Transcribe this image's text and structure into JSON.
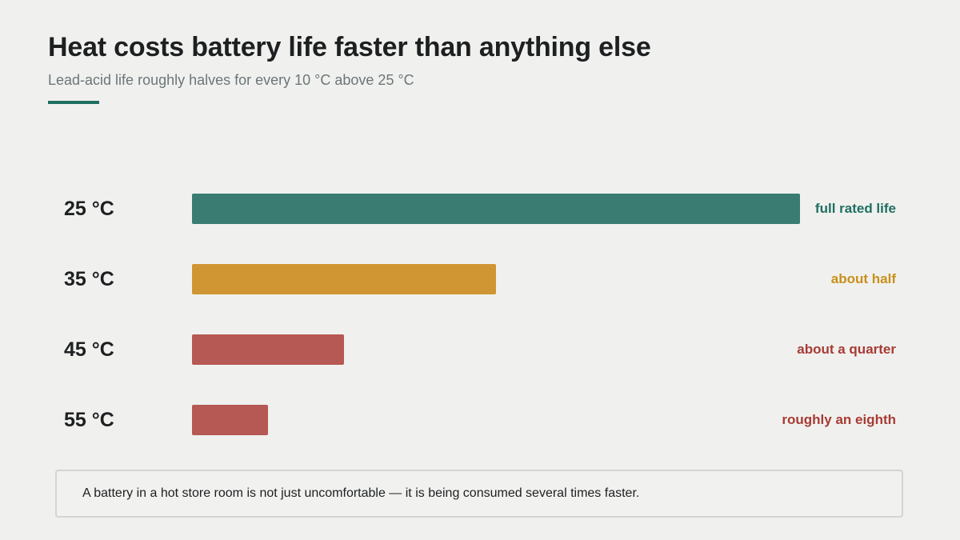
{
  "header": {
    "title": "Heat costs battery life faster than anything else",
    "subtitle": "Lead-acid life roughly halves for every 10 °C above 25 °C"
  },
  "colors": {
    "background": "#f0f1ee",
    "accent": "#1f6e62",
    "teal": "#3a7c72",
    "amber": "#d09634",
    "red": "#b65853",
    "teal_text": "#1f6e62",
    "amber_text": "#c98f1a",
    "red_text": "#a83a34"
  },
  "chart_data": {
    "type": "bar",
    "orientation": "horizontal",
    "categories": [
      "25 °C",
      "35 °C",
      "45 °C",
      "55 °C"
    ],
    "values": [
      1,
      0.5,
      0.25,
      0.125
    ],
    "value_meaning": "fraction of full rated life",
    "annotations": [
      "full rated life",
      "about half",
      "about a quarter",
      "roughly an eighth"
    ],
    "bar_colors": [
      "#3a7c72",
      "#d09634",
      "#b65853",
      "#b65853"
    ],
    "annotation_colors": [
      "#1f6e62",
      "#c98f1a",
      "#a83a34",
      "#a83a34"
    ],
    "xlim": [
      0,
      1
    ],
    "grid": false,
    "legend": "none"
  },
  "footer": {
    "note": "A battery in a hot store room is not just uncomfortable — it is being consumed several times faster."
  }
}
